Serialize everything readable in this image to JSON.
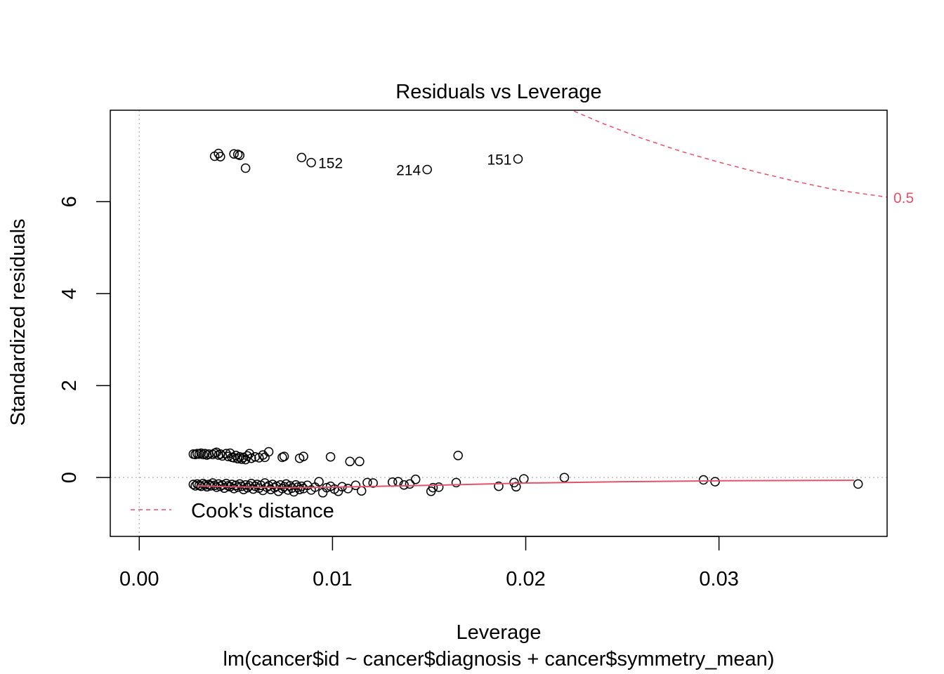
{
  "chart_data": {
    "type": "scatter",
    "title": "Residuals vs Leverage",
    "xlabel": "Leverage",
    "subtitle": "lm(cancer$id ~ cancer$diagnosis + cancer$symmetry_mean)",
    "ylabel": "Standardized residuals",
    "xlim": [
      -0.0015,
      0.0387
    ],
    "ylim": [
      -1.28,
      7.99
    ],
    "xticks": [
      0.0,
      0.01,
      0.02,
      0.03
    ],
    "xtick_labels": [
      "0.00",
      "0.01",
      "0.02",
      "0.03"
    ],
    "yticks": [
      0,
      2,
      4,
      6
    ],
    "ytick_labels": [
      "0",
      "2",
      "4",
      "6"
    ],
    "grid": false,
    "reference_lines": {
      "h": 0,
      "v": 0
    },
    "legend": {
      "label": "Cook's distance",
      "position": "bottom-left"
    },
    "cooks_distance": {
      "label": "0.5",
      "color": "#DF536B",
      "x": [
        0.0225,
        0.024,
        0.026,
        0.028,
        0.03,
        0.032,
        0.034,
        0.036,
        0.0387
      ],
      "y": [
        7.97,
        7.7,
        7.38,
        7.1,
        6.86,
        6.64,
        6.44,
        6.26,
        6.1
      ]
    },
    "smoother": {
      "color": "#DF536B",
      "x": [
        0.003,
        0.0045,
        0.006,
        0.008,
        0.01,
        0.015,
        0.02,
        0.025,
        0.03,
        0.037
      ],
      "y": [
        -0.18,
        -0.2,
        -0.21,
        -0.22,
        -0.21,
        -0.17,
        -0.12,
        -0.09,
        -0.07,
        -0.06
      ]
    },
    "labeled_points": [
      {
        "label": "152",
        "x": 0.0089,
        "y": 6.85
      },
      {
        "label": "214",
        "x": 0.0149,
        "y": 6.7
      },
      {
        "label": "151",
        "x": 0.0196,
        "y": 6.93
      }
    ],
    "points": [
      [
        0.0039,
        6.99
      ],
      [
        0.0041,
        7.05
      ],
      [
        0.0042,
        6.98
      ],
      [
        0.0049,
        7.04
      ],
      [
        0.0051,
        7.03
      ],
      [
        0.0052,
        7.01
      ],
      [
        0.0055,
        6.73
      ],
      [
        0.0084,
        6.96
      ],
      [
        0.0089,
        6.85
      ],
      [
        0.0149,
        6.7
      ],
      [
        0.0196,
        6.93
      ],
      [
        0.0028,
        0.51
      ],
      [
        0.0029,
        0.5
      ],
      [
        0.003,
        0.52
      ],
      [
        0.0031,
        0.51
      ],
      [
        0.0032,
        0.53
      ],
      [
        0.0033,
        0.5
      ],
      [
        0.0034,
        0.52
      ],
      [
        0.0035,
        0.49
      ],
      [
        0.0036,
        0.51
      ],
      [
        0.0038,
        0.5
      ],
      [
        0.0039,
        0.53
      ],
      [
        0.004,
        0.55
      ],
      [
        0.0041,
        0.49
      ],
      [
        0.0042,
        0.51
      ],
      [
        0.0043,
        0.47
      ],
      [
        0.0045,
        0.52
      ],
      [
        0.0046,
        0.46
      ],
      [
        0.0047,
        0.53
      ],
      [
        0.0048,
        0.44
      ],
      [
        0.0049,
        0.43
      ],
      [
        0.005,
        0.48
      ],
      [
        0.0051,
        0.41
      ],
      [
        0.0052,
        0.45
      ],
      [
        0.0053,
        0.4
      ],
      [
        0.0054,
        0.44
      ],
      [
        0.0055,
        0.39
      ],
      [
        0.0056,
        0.47
      ],
      [
        0.0057,
        0.52
      ],
      [
        0.0058,
        0.42
      ],
      [
        0.006,
        0.45
      ],
      [
        0.0062,
        0.43
      ],
      [
        0.0064,
        0.49
      ],
      [
        0.0065,
        0.44
      ],
      [
        0.0067,
        0.56
      ],
      [
        0.0074,
        0.44
      ],
      [
        0.0075,
        0.46
      ],
      [
        0.0083,
        0.42
      ],
      [
        0.0085,
        0.46
      ],
      [
        0.0099,
        0.45
      ],
      [
        0.0109,
        0.35
      ],
      [
        0.0114,
        0.35
      ],
      [
        0.0165,
        0.48
      ],
      [
        0.0028,
        -0.15
      ],
      [
        0.0029,
        -0.18
      ],
      [
        0.003,
        -0.14
      ],
      [
        0.0031,
        -0.17
      ],
      [
        0.0032,
        -0.19
      ],
      [
        0.0033,
        -0.13
      ],
      [
        0.0034,
        -0.16
      ],
      [
        0.0035,
        -0.2
      ],
      [
        0.0036,
        -0.15
      ],
      [
        0.0037,
        -0.18
      ],
      [
        0.0038,
        -0.12
      ],
      [
        0.0039,
        -0.17
      ],
      [
        0.004,
        -0.21
      ],
      [
        0.0041,
        -0.14
      ],
      [
        0.0042,
        -0.19
      ],
      [
        0.0043,
        -0.16
      ],
      [
        0.0044,
        -0.23
      ],
      [
        0.0045,
        -0.13
      ],
      [
        0.0046,
        -0.18
      ],
      [
        0.0047,
        -0.2
      ],
      [
        0.0048,
        -0.15
      ],
      [
        0.0049,
        -0.24
      ],
      [
        0.005,
        -0.17
      ],
      [
        0.0051,
        -0.21
      ],
      [
        0.0052,
        -0.14
      ],
      [
        0.0053,
        -0.19
      ],
      [
        0.0054,
        -0.26
      ],
      [
        0.0055,
        -0.16
      ],
      [
        0.0056,
        -0.22
      ],
      [
        0.0057,
        -0.18
      ],
      [
        0.0058,
        -0.13
      ],
      [
        0.0059,
        -0.25
      ],
      [
        0.006,
        -0.19
      ],
      [
        0.0061,
        -0.15
      ],
      [
        0.0062,
        -0.23
      ],
      [
        0.0063,
        -0.17
      ],
      [
        0.0064,
        -0.28
      ],
      [
        0.0065,
        -0.12
      ],
      [
        0.0066,
        -0.21
      ],
      [
        0.0067,
        -0.18
      ],
      [
        0.0068,
        -0.26
      ],
      [
        0.0069,
        -0.15
      ],
      [
        0.007,
        -0.22
      ],
      [
        0.0071,
        -0.19
      ],
      [
        0.0072,
        -0.3
      ],
      [
        0.0073,
        -0.16
      ],
      [
        0.0074,
        -0.24
      ],
      [
        0.0075,
        -0.2
      ],
      [
        0.0076,
        -0.14
      ],
      [
        0.0077,
        -0.27
      ],
      [
        0.0078,
        -0.18
      ],
      [
        0.0079,
        -0.23
      ],
      [
        0.008,
        -0.31
      ],
      [
        0.0081,
        -0.16
      ],
      [
        0.0082,
        -0.21
      ],
      [
        0.0083,
        -0.26
      ],
      [
        0.0084,
        -0.19
      ],
      [
        0.0085,
        -0.24
      ],
      [
        0.0087,
        -0.17
      ],
      [
        0.0089,
        -0.27
      ],
      [
        0.0091,
        -0.21
      ],
      [
        0.0093,
        -0.09
      ],
      [
        0.0095,
        -0.33
      ],
      [
        0.0097,
        -0.22
      ],
      [
        0.0099,
        -0.19
      ],
      [
        0.0101,
        -0.25
      ],
      [
        0.0103,
        -0.3
      ],
      [
        0.0105,
        -0.2
      ],
      [
        0.0108,
        -0.24
      ],
      [
        0.0112,
        -0.17
      ],
      [
        0.0115,
        -0.29
      ],
      [
        0.0118,
        -0.11
      ],
      [
        0.0121,
        -0.12
      ],
      [
        0.0131,
        -0.1
      ],
      [
        0.0134,
        -0.09
      ],
      [
        0.0137,
        -0.16
      ],
      [
        0.014,
        -0.14
      ],
      [
        0.0143,
        -0.04
      ],
      [
        0.0151,
        -0.3
      ],
      [
        0.0152,
        -0.22
      ],
      [
        0.0155,
        -0.21
      ],
      [
        0.0164,
        -0.11
      ],
      [
        0.0186,
        -0.19
      ],
      [
        0.0194,
        -0.11
      ],
      [
        0.0195,
        -0.2
      ],
      [
        0.0199,
        -0.03
      ],
      [
        0.022,
        0.0
      ],
      [
        0.0292,
        -0.05
      ],
      [
        0.0298,
        -0.09
      ],
      [
        0.0372,
        -0.14
      ]
    ]
  }
}
